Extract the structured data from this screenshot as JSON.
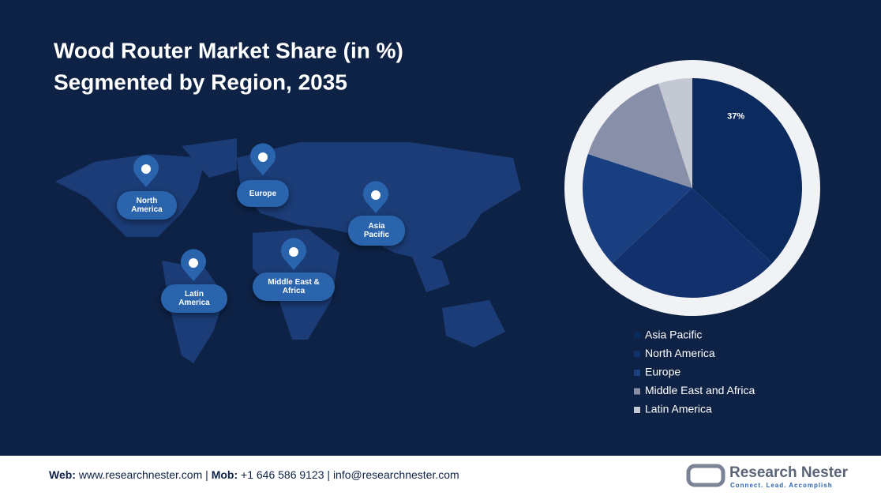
{
  "chart_data": {
    "type": "pie",
    "title": "Wood Router Market Share (in %)",
    "subtitle": "Segmented by Region, 2035",
    "categories": [
      "Asia Pacific",
      "North America",
      "Europe",
      "Middle East and Africa",
      "Latin America"
    ],
    "values": [
      37,
      26,
      17,
      15,
      5
    ],
    "value_labels": [
      "37%",
      null,
      null,
      null,
      null
    ],
    "colors": [
      "#0b2a5e",
      "#11306c",
      "#1a3f80",
      "#8790a8",
      "#c4c8d3"
    ]
  },
  "map_labels": [
    "North America",
    "Europe",
    "Asia Pacific",
    "Middle East & Africa",
    "Latin America"
  ],
  "footer": {
    "web_label": "Web:",
    "web": "www.researchnester.com",
    "sep": "|",
    "mob_label": "Mob:",
    "mob": "+1 646 586 9123",
    "email": "info@researchnester.com",
    "logo": "Research Nester",
    "tagline": "Connect. Lead. Accomplish"
  }
}
